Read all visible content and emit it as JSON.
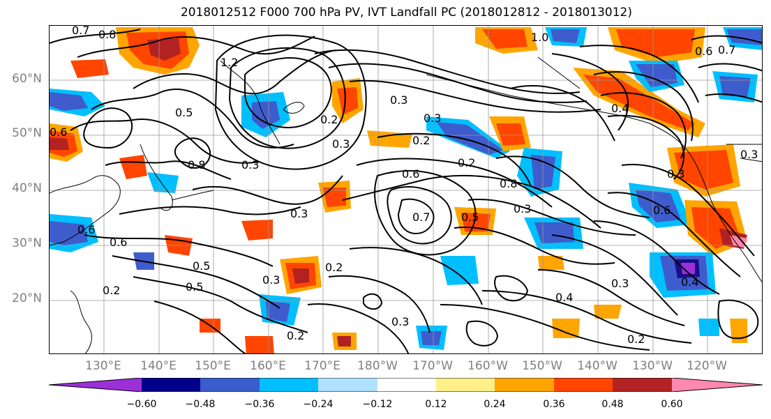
{
  "title": "2018012512 F000 700 hPa PV, IVT Landfall PC (2018012812 - 2018013012)",
  "map": {
    "lat_ticks": [
      "60°N",
      "50°N",
      "40°N",
      "30°N",
      "20°N"
    ],
    "lon_ticks": [
      "130°E",
      "140°E",
      "150°E",
      "160°E",
      "170°E",
      "180°W",
      "170°W",
      "160°W",
      "150°W",
      "140°W",
      "130°W",
      "120°W"
    ],
    "contour_labels": [
      "0.7",
      "0.8",
      "1.0",
      "0.6",
      "0.7",
      "1.2",
      "0.3",
      "0.2",
      "0.3",
      "0.3",
      "0.2",
      "0.6",
      "0.4",
      "0.5",
      "0.8",
      "0.3",
      "0.6",
      "0.6",
      "0.7",
      "0.5",
      "0.8",
      "0.5",
      "0.3",
      "0.3",
      "0.2",
      "0.2",
      "0.3",
      "0.3",
      "0.4",
      "0.2",
      "0.4",
      "0.3",
      "0.2",
      "0.2",
      "0.6",
      "0.5",
      "0.6",
      "0.3",
      "0.3"
    ],
    "grid": true,
    "shading_colors": {
      "neg_strong": "#1a0c8c",
      "neg_mid": "#3f5ccc",
      "neg_light": "#00bfff",
      "pos_light": "#ffa500",
      "pos_mid": "#ff4500",
      "pos_strong": "#b22222"
    }
  },
  "colorbar": {
    "ticks": [
      "−0.60",
      "−0.48",
      "−0.36",
      "−0.24",
      "−0.12",
      "0.12",
      "0.24",
      "0.36",
      "0.48",
      "0.60"
    ],
    "colors": [
      "#9b30d9",
      "#00008b",
      "#3a5ccc",
      "#00bfff",
      "#b0e2ff",
      "#ffffff",
      "#fff08a",
      "#ffa500",
      "#ff4500",
      "#b22222",
      "#ff88b0",
      "#ff88b0"
    ]
  }
}
